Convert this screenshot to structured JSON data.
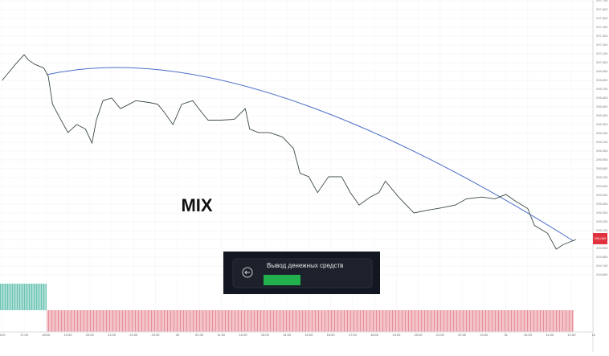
{
  "chart_data": {
    "type": "line",
    "annotation": "MIX",
    "toast": "Вывод денежных средств",
    "color": "#3a4a40",
    "trend_color": "#4a6fc9",
    "grid": true,
    "x": [
      0,
      0.3,
      0.6,
      1.0,
      1.2,
      1.5,
      1.9,
      2.1,
      2.3,
      2.6,
      3.0,
      3.4,
      3.8,
      4.1,
      4.3,
      4.6,
      5.0,
      5.4,
      5.8,
      6.1,
      6.7,
      7.1,
      7.4,
      7.8,
      8.2,
      8.7,
      9.1,
      9.4,
      10.0,
      10.6,
      11.1,
      11.3,
      11.7,
      12.2,
      12.8,
      13.3,
      13.6,
      14.0,
      14.4,
      14.9,
      15.5,
      15.9,
      16.3,
      16.8,
      17.2,
      17.5,
      18.1,
      18.8,
      19.4,
      20.1,
      20.7,
      21.2,
      21.9,
      22.5,
      23.0,
      23.4,
      24.0,
      24.3,
      24.9,
      25.3,
      25.6,
      26.2
    ],
    "values": [
      296800,
      296890,
      296980,
      297090,
      297030,
      296980,
      296940,
      296850,
      296530,
      296390,
      296210,
      296300,
      296250,
      296090,
      296350,
      296570,
      296600,
      296480,
      296530,
      296570,
      296550,
      296530,
      296440,
      296300,
      296530,
      296570,
      296440,
      296350,
      296350,
      296360,
      296480,
      296250,
      296210,
      296210,
      296160,
      296030,
      295750,
      295710,
      295530,
      295710,
      295710,
      295530,
      295390,
      295480,
      295530,
      295660,
      295480,
      295300,
      295330,
      295360,
      295390,
      295460,
      295480,
      295460,
      295510,
      295440,
      295350,
      295160,
      295070,
      294890,
      294940,
      295000
    ],
    "last_price_label": "295,000",
    "xlim": [
      -0.1,
      27.0
    ],
    "xticks": [
      {
        "value": 0,
        "label": "4:00"
      },
      {
        "value": 1,
        "label": "17:00"
      },
      {
        "value": 2,
        "label": "18:00"
      },
      {
        "value": 3,
        "label": "19:00"
      },
      {
        "value": 4,
        "label": "20:00"
      },
      {
        "value": 5,
        "label": "21:00"
      },
      {
        "value": 6,
        "label": "22:00"
      },
      {
        "value": 7,
        "label": "23:00"
      },
      {
        "value": 8,
        "label": "30"
      },
      {
        "value": 9,
        "label": "01:00"
      },
      {
        "value": 10,
        "label": "11:00"
      },
      {
        "value": 11,
        "label": "12:00"
      },
      {
        "value": 12,
        "label": "13:00"
      },
      {
        "value": 13,
        "label": "14:00"
      },
      {
        "value": 14,
        "label": "15:00"
      },
      {
        "value": 15,
        "label": "16:00"
      },
      {
        "value": 16,
        "label": "17:00"
      },
      {
        "value": 17,
        "label": "18:00"
      },
      {
        "value": 18,
        "label": "19:00"
      },
      {
        "value": 19,
        "label": "20:00"
      },
      {
        "value": 20,
        "label": "21:00"
      },
      {
        "value": 21,
        "label": "22:00"
      },
      {
        "value": 22,
        "label": "23:00"
      },
      {
        "value": 23,
        "label": "31"
      },
      {
        "value": 24,
        "label": "10:00"
      },
      {
        "value": 25,
        "label": "11:00"
      },
      {
        "value": 26,
        "label": "12:00"
      },
      {
        "value": 27,
        "label": "12"
      }
    ],
    "ylim": [
      294600,
      297700
    ],
    "yticks": [
      {
        "value": 297700,
        "label": "297,700"
      },
      {
        "value": 297600,
        "label": "297,600"
      },
      {
        "value": 297500,
        "label": "297,500"
      },
      {
        "value": 297400,
        "label": "297,400"
      },
      {
        "value": 297300,
        "label": "297,300"
      },
      {
        "value": 297200,
        "label": "297,200"
      },
      {
        "value": 297100,
        "label": "297,100"
      },
      {
        "value": 297000,
        "label": "297,000"
      },
      {
        "value": 296900,
        "label": "296,900"
      },
      {
        "value": 296800,
        "label": "296,800"
      },
      {
        "value": 296700,
        "label": "296,700"
      },
      {
        "value": 296600,
        "label": "296,600"
      },
      {
        "value": 296500,
        "label": "296,500"
      },
      {
        "value": 296400,
        "label": "296,400"
      },
      {
        "value": 296300,
        "label": "296,300"
      },
      {
        "value": 296200,
        "label": "296,200"
      },
      {
        "value": 296100,
        "label": "296,100"
      },
      {
        "value": 296000,
        "label": "296,000"
      },
      {
        "value": 295900,
        "label": "295,900"
      },
      {
        "value": 295800,
        "label": "295,800"
      },
      {
        "value": 295700,
        "label": "295,700"
      },
      {
        "value": 295600,
        "label": "295,600"
      },
      {
        "value": 295500,
        "label": "295,500"
      },
      {
        "value": 295400,
        "label": "295,400"
      },
      {
        "value": 295300,
        "label": "295,300"
      },
      {
        "value": 295200,
        "label": "295,200"
      },
      {
        "value": 295100,
        "label": "295,100"
      },
      {
        "value": 295000,
        "label": "295,000"
      },
      {
        "value": 294900,
        "label": "294,900"
      },
      {
        "value": 294800,
        "label": "294,800"
      },
      {
        "value": 294700,
        "label": "294,700"
      },
      {
        "value": 294600,
        "label": "294,600"
      }
    ]
  }
}
